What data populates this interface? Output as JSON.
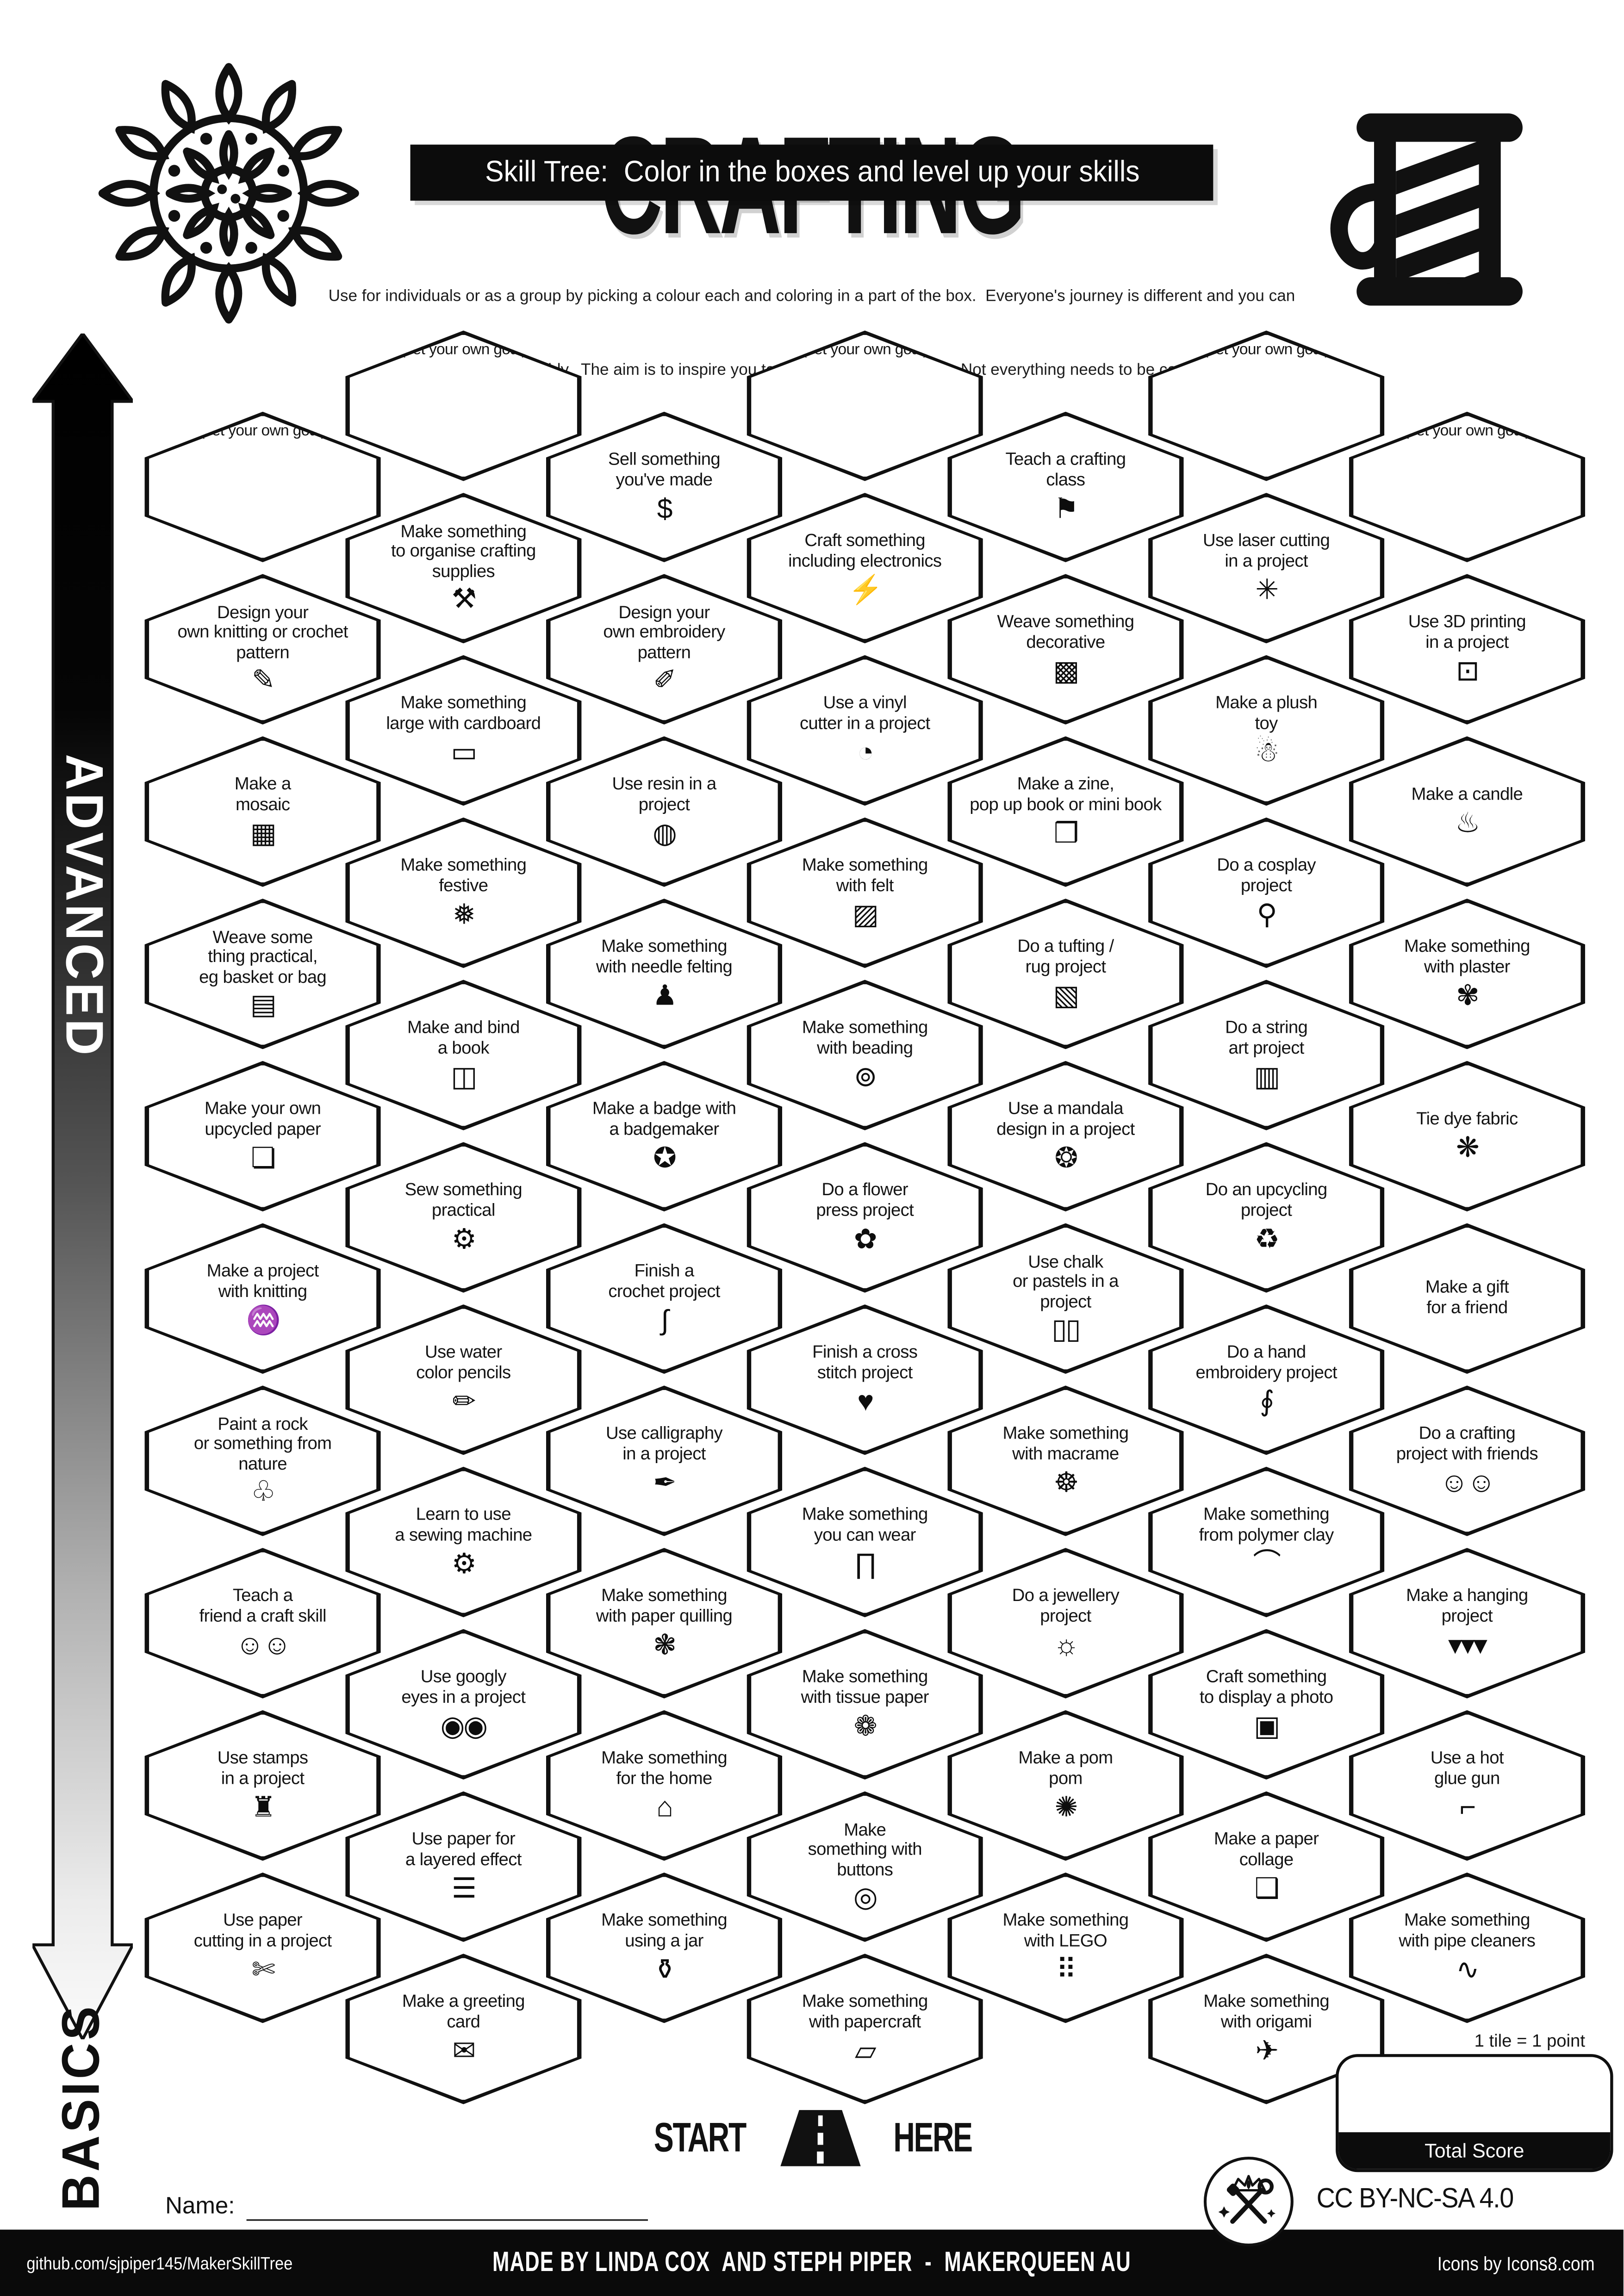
{
  "colors": {
    "ink": "#111111",
    "paper": "#ffffff"
  },
  "header": {
    "title": "CRAFTING",
    "subtitle": "Skill Tree:  Color in the boxes and level up your skills",
    "description_line1": "Use for individuals or as a group by picking a colour each and coloring in a part of the box.  Everyone's journey is different and you can",
    "description_line2": "interpret the goals flexibly.  The aim is to inspire you to learn and try new things. Not everything needs to be completed."
  },
  "axis": {
    "top_label": "ADVANCED",
    "bottom_label": "BASICS"
  },
  "grid": {
    "columns": 7,
    "hexes": [
      {
        "id": "goal-a",
        "col": 1,
        "row": 1,
        "label": "(set your own goal)",
        "icon": ""
      },
      {
        "id": "knit-pattern",
        "col": 1,
        "row": 2,
        "label": "Design your\nown knitting or crochet\npattern",
        "icon": "pattern-sketch-icon"
      },
      {
        "id": "mosaic",
        "col": 1,
        "row": 3,
        "label": "Make a\nmosaic",
        "icon": "mosaic-icon"
      },
      {
        "id": "weave-basket",
        "col": 1,
        "row": 4,
        "label": "Weave some\nthing practical,\neg basket or bag",
        "icon": "basket-bag-icon"
      },
      {
        "id": "upcycled-paper",
        "col": 1,
        "row": 5,
        "label": "Make your own\nupcycled paper",
        "icon": "paper-scroll-icon"
      },
      {
        "id": "knitting-project",
        "col": 1,
        "row": 6,
        "label": "Make a project\nwith knitting",
        "icon": "knitting-icon"
      },
      {
        "id": "paint-rock",
        "col": 1,
        "row": 7,
        "label": "Paint a rock\nor something from\nnature",
        "icon": "leaf-icon"
      },
      {
        "id": "teach-friend",
        "col": 1,
        "row": 8,
        "label": "Teach a\nfriend a craft skill",
        "icon": "friends-crafting-icon"
      },
      {
        "id": "stamps",
        "col": 1,
        "row": 9,
        "label": "Use stamps\nin a project",
        "icon": "stamp-icon"
      },
      {
        "id": "paper-cutting",
        "col": 1,
        "row": 10,
        "label": "Use paper\ncutting in a project",
        "icon": "box-cutter-icon"
      },
      {
        "id": "goal-b",
        "col": 2,
        "row": 1,
        "label": "(set your own goal)",
        "icon": ""
      },
      {
        "id": "organise-supplies",
        "col": 2,
        "row": 2,
        "label": "Make something\nto organise crafting\nsupplies",
        "icon": "organiser-icon"
      },
      {
        "id": "cardboard",
        "col": 2,
        "row": 3,
        "label": "Make something\nlarge with cardboard",
        "icon": "cardboard-icon"
      },
      {
        "id": "festive",
        "col": 2,
        "row": 4,
        "label": "Make something\nfestive",
        "icon": "bauble-icon"
      },
      {
        "id": "bind-book",
        "col": 2,
        "row": 5,
        "label": "Make and bind\na book",
        "icon": "book-icon"
      },
      {
        "id": "sew-practical",
        "col": 2,
        "row": 6,
        "label": "Sew something\npractical",
        "icon": "sewing-machine-icon"
      },
      {
        "id": "watercolor-pencils",
        "col": 2,
        "row": 7,
        "label": "Use water\ncolor pencils",
        "icon": "pencil-icon"
      },
      {
        "id": "sewing-machine",
        "col": 2,
        "row": 8,
        "label": "Learn to use\na sewing machine",
        "icon": "sewing-machine-icon"
      },
      {
        "id": "googly-eyes",
        "col": 2,
        "row": 9,
        "label": "Use googly\neyes in a project",
        "icon": "googly-eyes-icon"
      },
      {
        "id": "layered-paper",
        "col": 2,
        "row": 10,
        "label": "Use paper for\na layered effect",
        "icon": "layered-paper-icon"
      },
      {
        "id": "greeting-card",
        "col": 2,
        "row": 11,
        "label": "Make a greeting\ncard",
        "icon": "greeting-card-icon"
      },
      {
        "id": "sell-something",
        "col": 3,
        "row": 1,
        "label": "Sell something\nyou've made",
        "icon": "money-bag-icon"
      },
      {
        "id": "embroidery-pattern",
        "col": 3,
        "row": 2,
        "label": "Design your\nown embroidery\npattern",
        "icon": "embroidery-pattern-icon"
      },
      {
        "id": "resin",
        "col": 3,
        "row": 3,
        "label": "Use resin in a\nproject",
        "icon": "resin-bucket-icon"
      },
      {
        "id": "needle-felting",
        "col": 3,
        "row": 4,
        "label": "Make something\nwith needle felting",
        "icon": "felted-bear-icon"
      },
      {
        "id": "badge",
        "col": 3,
        "row": 5,
        "label": "Make a badge with\na badgemaker",
        "icon": "badge-icon"
      },
      {
        "id": "crochet",
        "col": 3,
        "row": 6,
        "label": "Finish a\ncrochet project",
        "icon": "crochet-hook-icon"
      },
      {
        "id": "calligraphy",
        "col": 3,
        "row": 7,
        "label": "Use calligraphy\nin a project",
        "icon": "calligraphy-pen-icon"
      },
      {
        "id": "paper-quilling",
        "col": 3,
        "row": 8,
        "label": "Make something\nwith paper quilling",
        "icon": "quilling-spiral-icon"
      },
      {
        "id": "for-the-home",
        "col": 3,
        "row": 9,
        "label": "Make something\nfor the home",
        "icon": "home-icon"
      },
      {
        "id": "jar",
        "col": 3,
        "row": 10,
        "label": "Make something\nusing a jar",
        "icon": "jar-icon"
      },
      {
        "id": "goal-c",
        "col": 4,
        "row": 1,
        "label": "(set your own goal)",
        "icon": ""
      },
      {
        "id": "electronics",
        "col": 4,
        "row": 2,
        "label": "Craft something\nincluding electronics",
        "icon": "led-bolt-icon"
      },
      {
        "id": "vinyl-cutter",
        "col": 4,
        "row": 3,
        "label": "Use a vinyl\ncutter in a project",
        "icon": "vinyl-sticker-icon"
      },
      {
        "id": "felt",
        "col": 4,
        "row": 4,
        "label": "Make something\nwith felt",
        "icon": "felt-roll-icon"
      },
      {
        "id": "beading",
        "col": 4,
        "row": 5,
        "label": "Make something\nwith beading",
        "icon": "bead-necklace-icon"
      },
      {
        "id": "flower-press",
        "col": 4,
        "row": 6,
        "label": "Do a flower\npress project",
        "icon": "flower-icon"
      },
      {
        "id": "cross-stitch",
        "col": 4,
        "row": 7,
        "label": "Finish a cross\nstitch project",
        "icon": "stitch-heart-icon"
      },
      {
        "id": "wearable",
        "col": 4,
        "row": 8,
        "label": "Make something\nyou can wear",
        "icon": "pants-icon"
      },
      {
        "id": "tissue-paper",
        "col": 4,
        "row": 9,
        "label": "Make something\nwith tissue paper",
        "icon": "lotus-icon"
      },
      {
        "id": "buttons",
        "col": 4,
        "row": 10,
        "label": "Make\nsomething with\nbuttons",
        "icon": "button-icon"
      },
      {
        "id": "papercraft",
        "col": 4,
        "row": 11,
        "label": "Make something\nwith papercraft",
        "icon": "papercraft-icon"
      },
      {
        "id": "teach-class",
        "col": 5,
        "row": 1,
        "label": "Teach a crafting\nclass",
        "icon": "presenter-icon"
      },
      {
        "id": "weave-decorative",
        "col": 5,
        "row": 2,
        "label": "Weave something\ndecorative",
        "icon": "weave-grid-icon"
      },
      {
        "id": "zine",
        "col": 5,
        "row": 3,
        "label": "Make a zine,\npop up book or mini book",
        "icon": "zine-book-icon"
      },
      {
        "id": "tufting-rug",
        "col": 5,
        "row": 4,
        "label": "Do a tufting /\nrug project",
        "icon": "rug-icon"
      },
      {
        "id": "mandala-design",
        "col": 5,
        "row": 5,
        "label": "Use a mandala\ndesign in a project",
        "icon": "mandala-small-icon"
      },
      {
        "id": "chalk-pastels",
        "col": 5,
        "row": 6,
        "label": "Use chalk\nor pastels in a\nproject",
        "icon": "chalk-sticks-icon"
      },
      {
        "id": "macrame",
        "col": 5,
        "row": 7,
        "label": "Make something\nwith macrame",
        "icon": "dreamcatcher-icon"
      },
      {
        "id": "jewellery",
        "col": 5,
        "row": 8,
        "label": "Do a jewellery\nproject",
        "icon": "pendant-icon"
      },
      {
        "id": "pom-pom",
        "col": 5,
        "row": 9,
        "label": "Make a pom\npom",
        "icon": "pompom-icon"
      },
      {
        "id": "lego",
        "col": 5,
        "row": 10,
        "label": "Make something\nwith LEGO",
        "icon": "brick-icon"
      },
      {
        "id": "goal-d",
        "col": 6,
        "row": 1,
        "label": "(set your own goal)",
        "icon": ""
      },
      {
        "id": "laser-cutting",
        "col": 6,
        "row": 2,
        "label": "Use laser cutting\nin a project",
        "icon": "laser-icon"
      },
      {
        "id": "plush-toy",
        "col": 6,
        "row": 3,
        "label": "Make a plush\ntoy",
        "icon": "plush-bear-icon"
      },
      {
        "id": "cosplay",
        "col": 6,
        "row": 4,
        "label": "Do a cosplay\nproject",
        "icon": "dress-form-icon"
      },
      {
        "id": "string-art",
        "col": 6,
        "row": 5,
        "label": "Do a string\nart project",
        "icon": "string-spool-icon"
      },
      {
        "id": "upcycling",
        "col": 6,
        "row": 6,
        "label": "Do an upcycling\nproject",
        "icon": "recycle-icon"
      },
      {
        "id": "hand-embroidery",
        "col": 6,
        "row": 7,
        "label": "Do a hand\nembroidery project",
        "icon": "needle-thread-icon"
      },
      {
        "id": "polymer-clay",
        "col": 6,
        "row": 8,
        "label": "Make something\nfrom polymer clay",
        "icon": "rainbow-icon"
      },
      {
        "id": "display-photo",
        "col": 6,
        "row": 9,
        "label": "Craft something\nto display a photo",
        "icon": "photo-frame-icon"
      },
      {
        "id": "paper-collage",
        "col": 6,
        "row": 10,
        "label": "Make a paper\ncollage",
        "icon": "collage-icon"
      },
      {
        "id": "origami",
        "col": 6,
        "row": 11,
        "label": "Make something\nwith origami",
        "icon": "origami-bird-icon"
      },
      {
        "id": "goal-e",
        "col": 7,
        "row": 1,
        "label": "(set your own goal)",
        "icon": ""
      },
      {
        "id": "printing-3d",
        "col": 7,
        "row": 2,
        "label": "Use 3D printing\nin a project",
        "icon": "printer-3d-icon"
      },
      {
        "id": "candle",
        "col": 7,
        "row": 3,
        "label": "Make a candle",
        "icon": "candle-icon"
      },
      {
        "id": "plaster",
        "col": 7,
        "row": 4,
        "label": "Make something\nwith plaster",
        "icon": "statue-icon"
      },
      {
        "id": "tie-dye",
        "col": 7,
        "row": 5,
        "label": "Tie dye fabric",
        "icon": "tie-dye-swirl-icon"
      },
      {
        "id": "gift-friend",
        "col": 7,
        "row": 6,
        "label": "Make a gift\nfor a friend",
        "icon": "bow-icon"
      },
      {
        "id": "craft-with-friends",
        "col": 7,
        "row": 7,
        "label": "Do a crafting\nproject with friends",
        "icon": "friends-crafting-icon"
      },
      {
        "id": "hanging-project",
        "col": 7,
        "row": 8,
        "label": "Make a hanging\nproject",
        "icon": "bunting-icon"
      },
      {
        "id": "hot-glue-gun",
        "col": 7,
        "row": 9,
        "label": "Use a hot\nglue gun",
        "icon": "glue-gun-icon"
      },
      {
        "id": "pipe-cleaners",
        "col": 7,
        "row": 10,
        "label": "Make something\nwith pipe cleaners",
        "icon": "pipe-cleaner-icon"
      }
    ]
  },
  "icon_glyphs": {
    "pattern-sketch-icon": "✎",
    "mosaic-icon": "▦",
    "basket-bag-icon": "▤",
    "paper-scroll-icon": "❏",
    "knitting-icon": "♒",
    "leaf-icon": "♧",
    "friends-crafting-icon": "☺☺",
    "stamp-icon": "♜",
    "box-cutter-icon": "✄",
    "organiser-icon": "⚒",
    "cardboard-icon": "▭",
    "bauble-icon": "❅",
    "book-icon": "◫",
    "sewing-machine-icon": "⚙",
    "pencil-icon": "✏",
    "googly-eyes-icon": "◉◉",
    "layered-paper-icon": "☰",
    "greeting-card-icon": "✉",
    "money-bag-icon": "$",
    "embroidery-pattern-icon": "✐",
    "resin-bucket-icon": "◍",
    "felted-bear-icon": "♟",
    "badge-icon": "✪",
    "crochet-hook-icon": "∫",
    "calligraphy-pen-icon": "✒",
    "quilling-spiral-icon": "❃",
    "home-icon": "⌂",
    "jar-icon": "⚱",
    "led-bolt-icon": "⚡",
    "vinyl-sticker-icon": "◔",
    "felt-roll-icon": "▨",
    "bead-necklace-icon": "⊚",
    "flower-icon": "✿",
    "stitch-heart-icon": "♥",
    "pants-icon": "∏",
    "lotus-icon": "❁",
    "button-icon": "◎",
    "papercraft-icon": "▱",
    "presenter-icon": "⚑",
    "weave-grid-icon": "▩",
    "zine-book-icon": "❒",
    "rug-icon": "▧",
    "mandala-small-icon": "❂",
    "chalk-sticks-icon": "▯▯",
    "dreamcatcher-icon": "☸",
    "pendant-icon": "☼",
    "pompom-icon": "✺",
    "brick-icon": "⠿",
    "laser-icon": "✳",
    "plush-bear-icon": "☃",
    "dress-form-icon": "⚲",
    "string-spool-icon": "▥",
    "recycle-icon": "♻",
    "needle-thread-icon": "∮",
    "rainbow-icon": "⌒",
    "photo-frame-icon": "▣",
    "collage-icon": "❑",
    "origami-bird-icon": "✈",
    "printer-3d-icon": "⊡",
    "candle-icon": "♨",
    "statue-icon": "✾",
    "tie-dye-swirl-icon": "❋",
    "bow-icon": "⋈",
    "bunting-icon": "▾▾▾",
    "glue-gun-icon": "⌐",
    "pipe-cleaner-icon": "∿"
  },
  "start_marker": {
    "left_label": "START",
    "right_label": "HERE"
  },
  "scoring": {
    "tile_note": "1 tile = 1 point",
    "total_label": "Total Score"
  },
  "name_field": {
    "label": "Name:",
    "value": ""
  },
  "license": "CC BY-NC-SA 4.0",
  "footer": {
    "left": "github.com/sjpiper145/MakerSkillTree",
    "center": "MADE BY LINDA COX  AND STEPH PIPER  -  MAKERQUEEN AU",
    "right": "Icons by Icons8.com"
  }
}
